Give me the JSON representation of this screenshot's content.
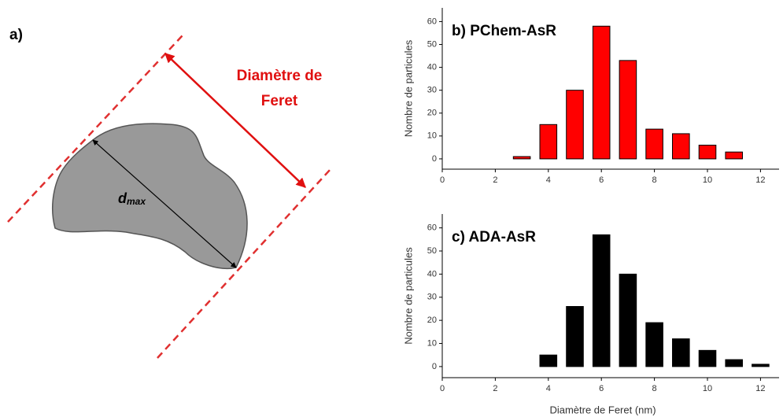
{
  "diagram": {
    "panel_label": "a)",
    "feret_label": [
      "Diamètre de",
      "Feret"
    ],
    "dmax": {
      "main": "d",
      "sub": "max"
    }
  },
  "chart_data": [
    {
      "type": "bar",
      "title": "b) PChem-AsR",
      "ylabel": "Nombre de particules",
      "color": "#ff0000",
      "x": [
        1,
        2,
        3,
        4,
        5,
        6,
        7,
        8,
        9,
        10,
        11,
        12
      ],
      "values": [
        0,
        0,
        1,
        15,
        30,
        58,
        43,
        13,
        11,
        6,
        3,
        0
      ],
      "xlim": [
        0,
        12.7
      ],
      "ylim": [
        -4.5,
        66
      ],
      "xticks": [
        0,
        2,
        4,
        6,
        8,
        10,
        12
      ],
      "yticks": [
        0,
        10,
        20,
        30,
        40,
        50,
        60
      ]
    },
    {
      "type": "bar",
      "title": "c) ADA-AsR",
      "ylabel": "Nombre de particules",
      "xlabel": "Diamètre de Feret (nm)",
      "color": "#000000",
      "x": [
        1,
        2,
        3,
        4,
        5,
        6,
        7,
        8,
        9,
        10,
        11,
        12
      ],
      "values": [
        0,
        0,
        0,
        5,
        26,
        57,
        40,
        19,
        12,
        7,
        3,
        1
      ],
      "xlim": [
        0,
        12.7
      ],
      "ylim": [
        -4.8,
        66
      ],
      "xticks": [
        0,
        2,
        4,
        6,
        8,
        10,
        12
      ],
      "yticks": [
        0,
        10,
        20,
        30,
        40,
        50,
        60
      ]
    }
  ]
}
